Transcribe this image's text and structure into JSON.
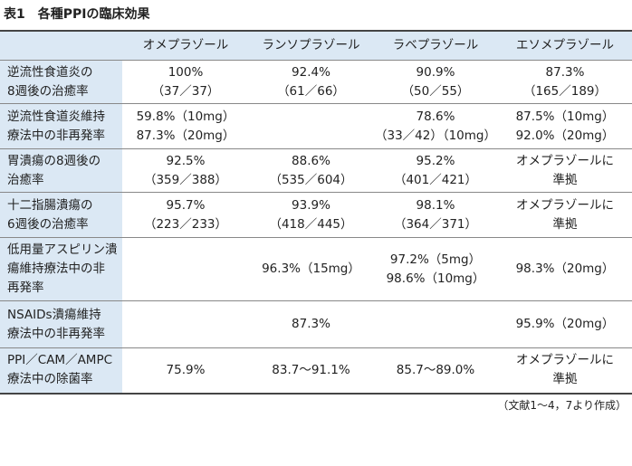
{
  "title": "表1　各種PPIの臨床効果",
  "table": {
    "columns": [
      "オメプラゾール",
      "ランソプラゾール",
      "ラベプラゾール",
      "エソメプラゾール"
    ],
    "rows": [
      {
        "label": [
          "逆流性食道炎の",
          "8週後の治癒率"
        ],
        "cells": [
          [
            "100%",
            "（37／37）"
          ],
          [
            "92.4%",
            "（61／66）"
          ],
          [
            "90.9%",
            "（50／55）"
          ],
          [
            "87.3%",
            "（165／189）"
          ]
        ]
      },
      {
        "label": [
          "逆流性食道炎維持",
          "療法中の非再発率"
        ],
        "cells": [
          [
            "59.8%（10mg）",
            "87.3%（20mg）"
          ],
          [],
          [
            "78.6%",
            "（33／42）（10mg）"
          ],
          [
            "87.5%（10mg）",
            "92.0%（20mg）"
          ]
        ]
      },
      {
        "label": [
          "胃潰瘍の8週後の",
          "治癒率"
        ],
        "cells": [
          [
            "92.5%",
            "（359／388）"
          ],
          [
            "88.6%",
            "（535／604）"
          ],
          [
            "95.2%",
            "（401／421）"
          ],
          [
            "オメプラゾールに",
            "準拠"
          ]
        ]
      },
      {
        "label": [
          "十二指腸潰瘍の",
          "6週後の治癒率"
        ],
        "cells": [
          [
            "95.7%",
            "（223／233）"
          ],
          [
            "93.9%",
            "（418／445）"
          ],
          [
            "98.1%",
            "（364／371）"
          ],
          [
            "オメプラゾールに",
            "準拠"
          ]
        ]
      },
      {
        "label": [
          "低用量アスピリン潰",
          "瘍維持療法中の非",
          "再発率"
        ],
        "cells": [
          [],
          [
            "96.3%（15mg）"
          ],
          [
            "97.2%（5mg）",
            "98.6%（10mg）"
          ],
          [
            "98.3%（20mg）"
          ]
        ]
      },
      {
        "label": [
          "NSAIDs潰瘍維持",
          "療法中の非再発率"
        ],
        "cells": [
          [],
          [
            "87.3%"
          ],
          [],
          [
            "95.9%（20mg）"
          ]
        ]
      },
      {
        "label": [
          "PPI／CAM／AMPC",
          "療法中の除菌率"
        ],
        "cells": [
          [
            "75.9%"
          ],
          [
            "83.7～91.1%"
          ],
          [
            "85.7～89.0%"
          ],
          [
            "オメプラゾールに",
            "準拠"
          ]
        ]
      }
    ]
  },
  "footnote": "（文献1～4，7より作成）"
}
